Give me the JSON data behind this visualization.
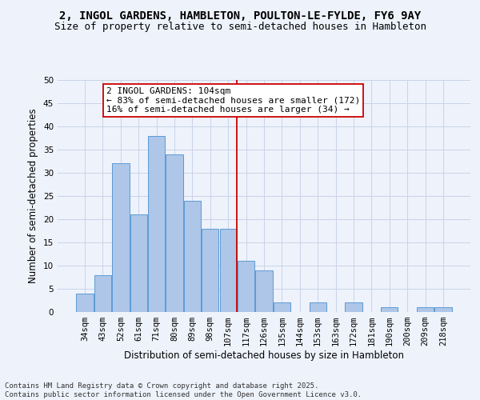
{
  "title_line1": "2, INGOL GARDENS, HAMBLETON, POULTON-LE-FYLDE, FY6 9AY",
  "title_line2": "Size of property relative to semi-detached houses in Hambleton",
  "xlabel": "Distribution of semi-detached houses by size in Hambleton",
  "ylabel": "Number of semi-detached properties",
  "categories": [
    "34sqm",
    "43sqm",
    "52sqm",
    "61sqm",
    "71sqm",
    "80sqm",
    "89sqm",
    "98sqm",
    "107sqm",
    "117sqm",
    "126sqm",
    "135sqm",
    "144sqm",
    "153sqm",
    "163sqm",
    "172sqm",
    "181sqm",
    "190sqm",
    "200sqm",
    "209sqm",
    "218sqm"
  ],
  "values": [
    4,
    8,
    32,
    21,
    38,
    34,
    24,
    18,
    18,
    11,
    9,
    2,
    0,
    2,
    0,
    2,
    0,
    1,
    0,
    1,
    1
  ],
  "bar_color": "#aec6e8",
  "bar_edge_color": "#5b9bd5",
  "vline_x": 8.5,
  "vline_color": "#cc0000",
  "annotation_line1": "2 INGOL GARDENS: 104sqm",
  "annotation_line2": "← 83% of semi-detached houses are smaller (172)",
  "annotation_line3": "16% of semi-detached houses are larger (34) →",
  "annotation_box_color": "#ffffff",
  "annotation_box_edge": "#cc0000",
  "ylim": [
    0,
    50
  ],
  "yticks": [
    0,
    5,
    10,
    15,
    20,
    25,
    30,
    35,
    40,
    45,
    50
  ],
  "grid_color": "#c8d4e8",
  "background_color": "#eef2fb",
  "footer_line1": "Contains HM Land Registry data © Crown copyright and database right 2025.",
  "footer_line2": "Contains public sector information licensed under the Open Government Licence v3.0.",
  "title_fontsize": 10,
  "subtitle_fontsize": 9,
  "axis_label_fontsize": 8.5,
  "tick_fontsize": 7.5,
  "annotation_fontsize": 8,
  "footer_fontsize": 6.5
}
